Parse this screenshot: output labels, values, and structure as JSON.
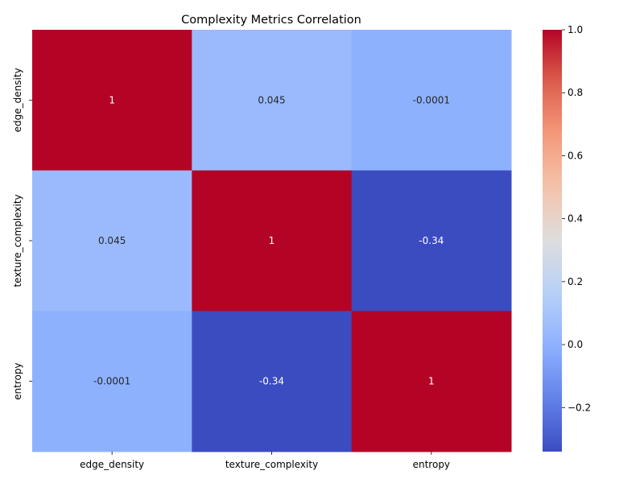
{
  "chart_data": {
    "type": "heatmap",
    "title": "Complexity Metrics Correlation",
    "xlabel": "",
    "ylabel": "",
    "x_labels": [
      "edge_density",
      "texture_complexity",
      "entropy"
    ],
    "y_labels": [
      "edge_density",
      "texture_complexity",
      "entropy"
    ],
    "values": [
      [
        1,
        0.045,
        -0.0001
      ],
      [
        0.045,
        1,
        -0.34
      ],
      [
        -0.0001,
        -0.34,
        1
      ]
    ],
    "annotations": [
      [
        "1",
        "0.045",
        "-0.0001"
      ],
      [
        "0.045",
        "1",
        "-0.34"
      ],
      [
        "-0.0001",
        "-0.34",
        "1"
      ]
    ],
    "colormap": "coolwarm",
    "vmin": -0.34,
    "vmax": 1.0,
    "colorbar": {
      "ticks": [
        1.0,
        0.8,
        0.6,
        0.4,
        0.2,
        0.0,
        -0.2
      ],
      "tick_labels": [
        "1.0",
        "0.8",
        "0.6",
        "0.4",
        "0.2",
        "0.0",
        "−0.2"
      ]
    },
    "grid": false,
    "legend": "colorbar-right"
  }
}
